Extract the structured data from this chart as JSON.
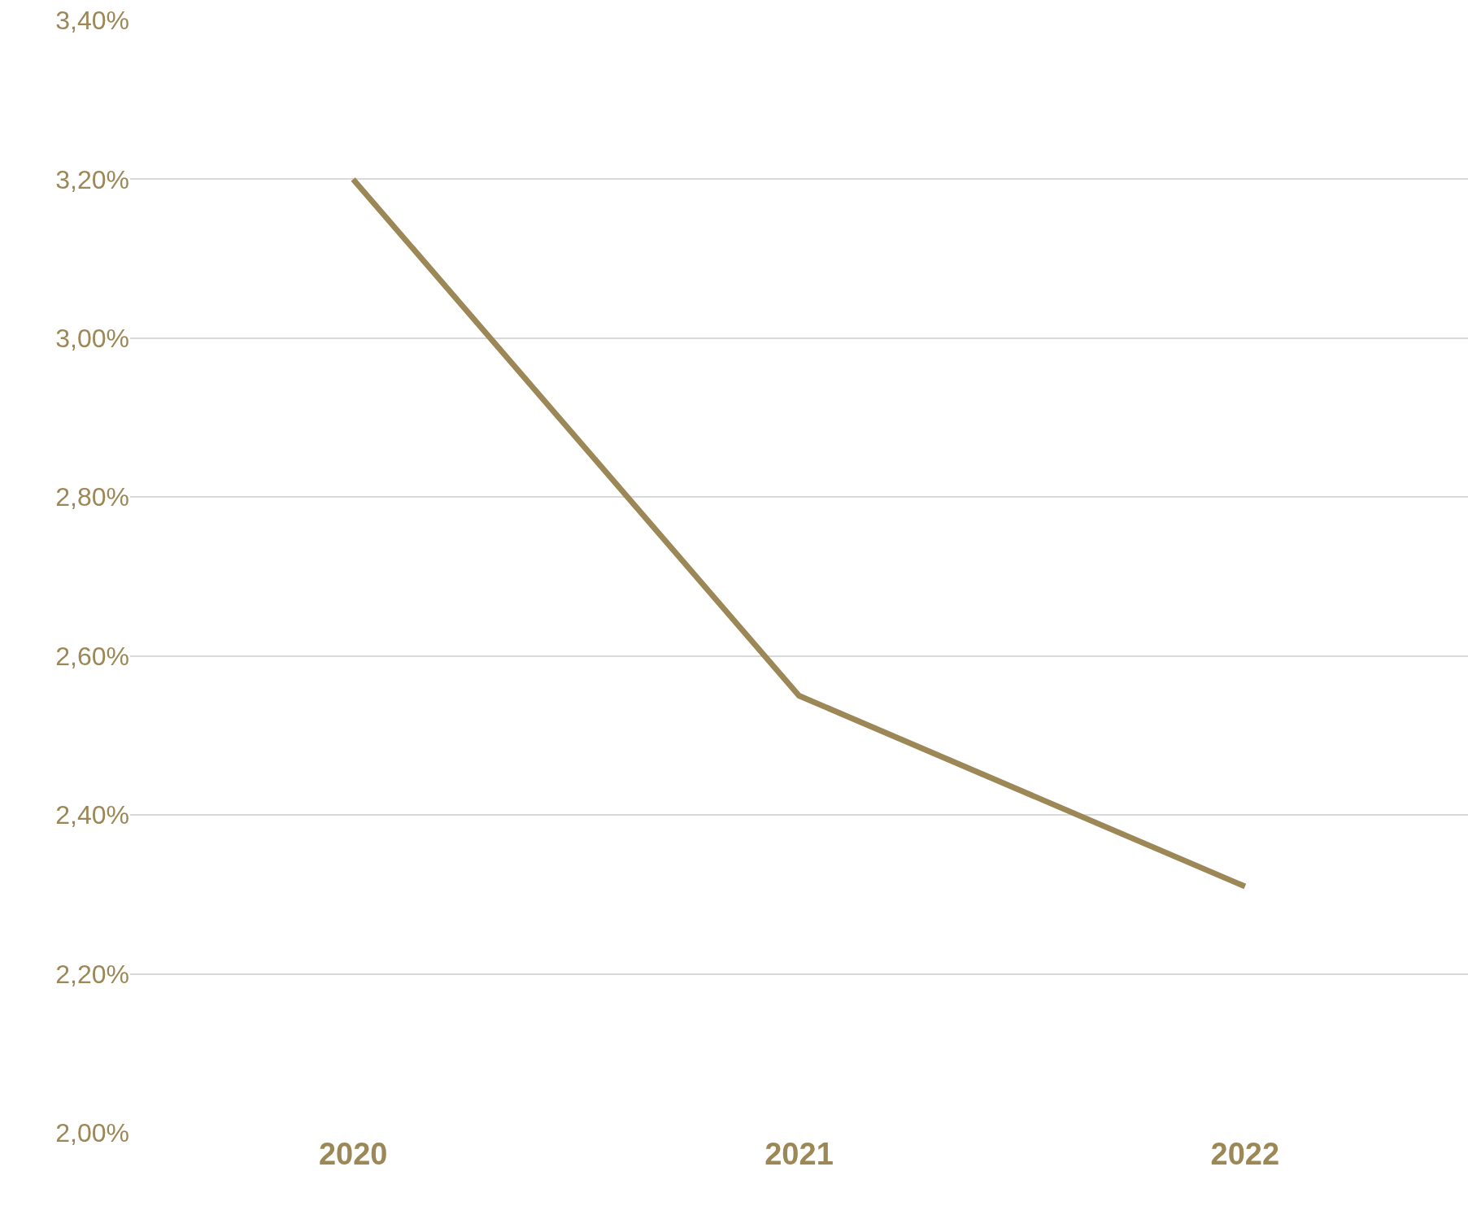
{
  "chart_data": {
    "type": "line",
    "categories": [
      "2020",
      "2021",
      "2022"
    ],
    "series": [
      {
        "color": "#9c8757",
        "values": [
          3.2,
          2.55,
          2.31
        ]
      }
    ],
    "ylim": [
      2.0,
      3.4
    ],
    "yticks": [
      {
        "value": 2.0,
        "label": "2,00%"
      },
      {
        "value": 2.2,
        "label": "2,20%"
      },
      {
        "value": 2.4,
        "label": "2,40%"
      },
      {
        "value": 2.6,
        "label": "2,60%"
      },
      {
        "value": 2.8,
        "label": "2,80%"
      },
      {
        "value": 3.0,
        "label": "3,00%"
      },
      {
        "value": 3.2,
        "label": "3,20%"
      },
      {
        "value": 3.4,
        "label": "3,40%"
      }
    ],
    "grid": "y",
    "legend": false,
    "marker": "none",
    "line_style": "solid"
  }
}
